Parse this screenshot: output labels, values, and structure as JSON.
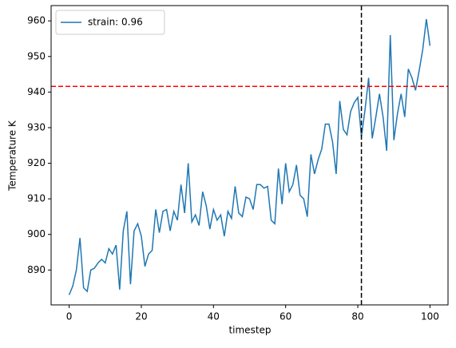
{
  "chart_data": {
    "type": "line",
    "xlabel": "timestep",
    "ylabel": "Temperature K",
    "x": [
      0,
      1,
      2,
      3,
      4,
      5,
      6,
      7,
      8,
      9,
      10,
      11,
      12,
      13,
      14,
      15,
      16,
      17,
      18,
      19,
      20,
      21,
      22,
      23,
      24,
      25,
      26,
      27,
      28,
      29,
      30,
      31,
      32,
      33,
      34,
      35,
      36,
      37,
      38,
      39,
      40,
      41,
      42,
      43,
      44,
      45,
      46,
      47,
      48,
      49,
      50,
      51,
      52,
      53,
      54,
      55,
      56,
      57,
      58,
      59,
      60,
      61,
      62,
      63,
      64,
      65,
      66,
      67,
      68,
      69,
      70,
      71,
      72,
      73,
      74,
      75,
      76,
      77,
      78,
      79,
      80,
      81,
      82,
      83,
      84,
      85,
      86,
      87,
      88,
      89,
      90,
      91,
      92,
      93,
      94,
      95,
      96,
      97,
      98,
      99,
      100
    ],
    "series": [
      {
        "name": "strain: 0.96",
        "color": "#1f77b4",
        "values": [
          883,
          885.5,
          890,
          899,
          885,
          884,
          890,
          890.5,
          892,
          893,
          892,
          896,
          894.5,
          897,
          884.5,
          901,
          906.5,
          886,
          901,
          903,
          899.5,
          891,
          894.5,
          895.5,
          907,
          900.5,
          906.5,
          907,
          901,
          906.5,
          904,
          914,
          906,
          920,
          903.5,
          905.5,
          902.5,
          912,
          908,
          901.5,
          907,
          904,
          905.5,
          899.5,
          906.5,
          904.5,
          913.5,
          906,
          905,
          910.5,
          910,
          907,
          914,
          914,
          913,
          913.5,
          904,
          903,
          918.5,
          908.5,
          920,
          912,
          914,
          919.5,
          911,
          910,
          905,
          922.5,
          917,
          921,
          924,
          931,
          931,
          926,
          917,
          937.5,
          929.5,
          928,
          934.5,
          937,
          938.5,
          927.5,
          935,
          944,
          927,
          933,
          939.5,
          933,
          923.5,
          956,
          926.5,
          934,
          939.5,
          933,
          946.5,
          944,
          940.5,
          946,
          952,
          960.5,
          953
        ]
      }
    ],
    "hline": {
      "value": 941.6,
      "color": "#ff0000"
    },
    "vline": {
      "value": 81,
      "color": "#000000"
    },
    "xlim": [
      -5,
      105
    ],
    "xticks": [
      0,
      20,
      40,
      60,
      80,
      100
    ],
    "ylim": [
      880.2,
      964.3
    ],
    "yticks": [
      890,
      900,
      910,
      920,
      930,
      940,
      950,
      960
    ],
    "legend": "upper left"
  }
}
